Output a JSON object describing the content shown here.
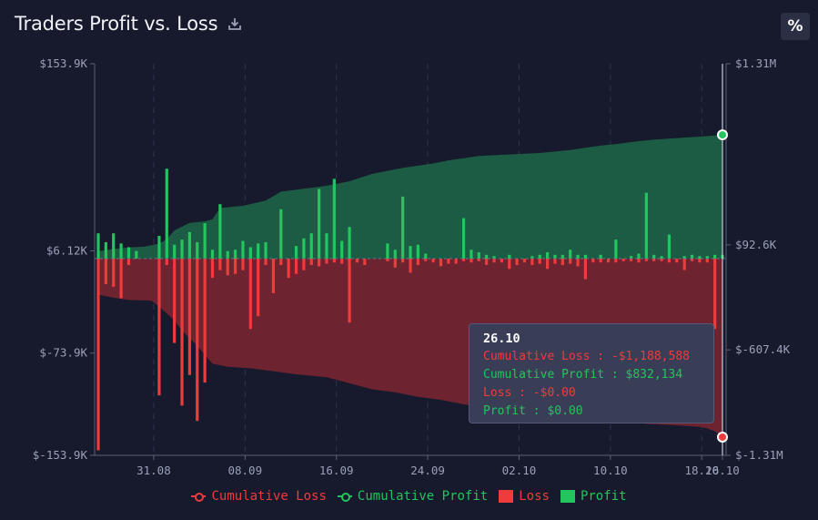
{
  "header": {
    "title": "Traders Profit vs. Loss",
    "download_icon": "download-icon",
    "percent_button_label": "%"
  },
  "colors": {
    "background": "#161a2c",
    "loss": "#ef3b3b",
    "profit": "#22c55e",
    "loss_area": "#6e2330",
    "profit_area": "#1d5c44"
  },
  "tooltip": {
    "date": "26.10",
    "cumulative_loss": "Cumulative Loss : -$1,188,588",
    "cumulative_profit": "Cumulative Profit : $832,134",
    "loss": "Loss : -$0.00",
    "profit": "Profit : $0.00"
  },
  "chart_data": {
    "type": "bar",
    "title": "Traders Profit vs. Loss",
    "x_tick_labels": [
      "31.08",
      "08.09",
      "16.09",
      "24.09",
      "02.10",
      "10.10",
      "18.10",
      "26.10"
    ],
    "left_axis": {
      "tick_labels": [
        "$153.9K",
        "$6.12K",
        "$-73.9K",
        "$-153.9K"
      ],
      "ticks": [
        153900,
        6120,
        -73900,
        -153900
      ],
      "range": [
        -153900,
        153900
      ],
      "zero": 0
    },
    "right_axis": {
      "tick_labels": [
        "$1.31M",
        "$92.6K",
        "$-607.4K",
        "$-1.31M"
      ],
      "ticks": [
        1310000,
        92600,
        -607400,
        -1310000
      ],
      "range": [
        -1310000,
        1310000
      ]
    },
    "legend": [
      {
        "name": "Cumulative Loss",
        "kind": "line",
        "color": "#ef3b3b"
      },
      {
        "name": "Cumulative Profit",
        "kind": "line",
        "color": "#22c55e"
      },
      {
        "name": "Loss",
        "kind": "box",
        "color": "#ef3b3b"
      },
      {
        "name": "Profit",
        "kind": "box",
        "color": "#22c55e"
      }
    ],
    "bars": {
      "unit": "USD",
      "profit": [
        {
          "i": 0,
          "v": 20000
        },
        {
          "i": 1,
          "v": 13000
        },
        {
          "i": 2,
          "v": 20000
        },
        {
          "i": 3,
          "v": 12000
        },
        {
          "i": 4,
          "v": 9000
        },
        {
          "i": 5,
          "v": 6000
        },
        {
          "i": 8,
          "v": 18000
        },
        {
          "i": 9,
          "v": 71000
        },
        {
          "i": 10,
          "v": 11000
        },
        {
          "i": 11,
          "v": 15000
        },
        {
          "i": 12,
          "v": 21000
        },
        {
          "i": 13,
          "v": 13000
        },
        {
          "i": 14,
          "v": 28000
        },
        {
          "i": 15,
          "v": 7000
        },
        {
          "i": 16,
          "v": 43000
        },
        {
          "i": 17,
          "v": 6000
        },
        {
          "i": 18,
          "v": 7000
        },
        {
          "i": 19,
          "v": 14000
        },
        {
          "i": 20,
          "v": 9000
        },
        {
          "i": 21,
          "v": 12000
        },
        {
          "i": 22,
          "v": 13000
        },
        {
          "i": 24,
          "v": 39000
        },
        {
          "i": 26,
          "v": 10000
        },
        {
          "i": 27,
          "v": 16000
        },
        {
          "i": 28,
          "v": 20000
        },
        {
          "i": 29,
          "v": 55000
        },
        {
          "i": 30,
          "v": 20000
        },
        {
          "i": 31,
          "v": 63000
        },
        {
          "i": 32,
          "v": 14000
        },
        {
          "i": 33,
          "v": 25000
        },
        {
          "i": 38,
          "v": 12000
        },
        {
          "i": 39,
          "v": 7000
        },
        {
          "i": 40,
          "v": 49000
        },
        {
          "i": 41,
          "v": 10000
        },
        {
          "i": 42,
          "v": 11000
        },
        {
          "i": 43,
          "v": 4000
        },
        {
          "i": 48,
          "v": 32000
        },
        {
          "i": 49,
          "v": 7000
        },
        {
          "i": 50,
          "v": 5000
        },
        {
          "i": 51,
          "v": 3000
        },
        {
          "i": 52,
          "v": 2000
        },
        {
          "i": 54,
          "v": 3000
        },
        {
          "i": 57,
          "v": 2000
        },
        {
          "i": 58,
          "v": 3000
        },
        {
          "i": 59,
          "v": 5000
        },
        {
          "i": 60,
          "v": 3000
        },
        {
          "i": 61,
          "v": 3000
        },
        {
          "i": 62,
          "v": 7000
        },
        {
          "i": 63,
          "v": 3000
        },
        {
          "i": 64,
          "v": 3000
        },
        {
          "i": 66,
          "v": 3000
        },
        {
          "i": 68,
          "v": 15000
        },
        {
          "i": 70,
          "v": 2000
        },
        {
          "i": 71,
          "v": 4000
        },
        {
          "i": 72,
          "v": 52000
        },
        {
          "i": 73,
          "v": 3000
        },
        {
          "i": 74,
          "v": 2000
        },
        {
          "i": 75,
          "v": 19000
        },
        {
          "i": 77,
          "v": 2000
        },
        {
          "i": 78,
          "v": 3000
        },
        {
          "i": 79,
          "v": 2000
        },
        {
          "i": 80,
          "v": 2000
        },
        {
          "i": 81,
          "v": 3000
        },
        {
          "i": 82,
          "v": 3000
        }
      ],
      "loss": [
        {
          "i": 0,
          "v": -150000
        },
        {
          "i": 1,
          "v": -20000
        },
        {
          "i": 2,
          "v": -22000
        },
        {
          "i": 3,
          "v": -31000
        },
        {
          "i": 4,
          "v": -5000
        },
        {
          "i": 8,
          "v": -107000
        },
        {
          "i": 9,
          "v": -5000
        },
        {
          "i": 10,
          "v": -66000
        },
        {
          "i": 11,
          "v": -115000
        },
        {
          "i": 12,
          "v": -91000
        },
        {
          "i": 13,
          "v": -127000
        },
        {
          "i": 14,
          "v": -97000
        },
        {
          "i": 15,
          "v": -15000
        },
        {
          "i": 16,
          "v": -9000
        },
        {
          "i": 17,
          "v": -13000
        },
        {
          "i": 18,
          "v": -12000
        },
        {
          "i": 19,
          "v": -9000
        },
        {
          "i": 20,
          "v": -55000
        },
        {
          "i": 21,
          "v": -45000
        },
        {
          "i": 22,
          "v": -5000
        },
        {
          "i": 23,
          "v": -27000
        },
        {
          "i": 24,
          "v": -5000
        },
        {
          "i": 25,
          "v": -15000
        },
        {
          "i": 26,
          "v": -12000
        },
        {
          "i": 27,
          "v": -9000
        },
        {
          "i": 28,
          "v": -5000
        },
        {
          "i": 29,
          "v": -6000
        },
        {
          "i": 30,
          "v": -4000
        },
        {
          "i": 31,
          "v": -3000
        },
        {
          "i": 32,
          "v": -4000
        },
        {
          "i": 33,
          "v": -50000
        },
        {
          "i": 34,
          "v": -3000
        },
        {
          "i": 35,
          "v": -5000
        },
        {
          "i": 38,
          "v": -2000
        },
        {
          "i": 39,
          "v": -7000
        },
        {
          "i": 40,
          "v": -3000
        },
        {
          "i": 41,
          "v": -11000
        },
        {
          "i": 42,
          "v": -5000
        },
        {
          "i": 43,
          "v": -2000
        },
        {
          "i": 44,
          "v": -3000
        },
        {
          "i": 45,
          "v": -6000
        },
        {
          "i": 46,
          "v": -4000
        },
        {
          "i": 47,
          "v": -4000
        },
        {
          "i": 48,
          "v": -2000
        },
        {
          "i": 49,
          "v": -3000
        },
        {
          "i": 50,
          "v": -2000
        },
        {
          "i": 51,
          "v": -5000
        },
        {
          "i": 52,
          "v": -3000
        },
        {
          "i": 53,
          "v": -3000
        },
        {
          "i": 54,
          "v": -8000
        },
        {
          "i": 55,
          "v": -5000
        },
        {
          "i": 56,
          "v": -3000
        },
        {
          "i": 57,
          "v": -5000
        },
        {
          "i": 58,
          "v": -4000
        },
        {
          "i": 59,
          "v": -8000
        },
        {
          "i": 60,
          "v": -4000
        },
        {
          "i": 61,
          "v": -5000
        },
        {
          "i": 62,
          "v": -4000
        },
        {
          "i": 63,
          "v": -6000
        },
        {
          "i": 64,
          "v": -16000
        },
        {
          "i": 65,
          "v": -3000
        },
        {
          "i": 66,
          "v": -3000
        },
        {
          "i": 67,
          "v": -3000
        },
        {
          "i": 68,
          "v": -3000
        },
        {
          "i": 69,
          "v": -2000
        },
        {
          "i": 70,
          "v": -2000
        },
        {
          "i": 71,
          "v": -3000
        },
        {
          "i": 72,
          "v": -2000
        },
        {
          "i": 73,
          "v": -2000
        },
        {
          "i": 74,
          "v": -2000
        },
        {
          "i": 75,
          "v": -3000
        },
        {
          "i": 76,
          "v": -3000
        },
        {
          "i": 77,
          "v": -9000
        },
        {
          "i": 78,
          "v": -2000
        },
        {
          "i": 79,
          "v": -3000
        },
        {
          "i": 80,
          "v": -3000
        },
        {
          "i": 81,
          "v": -55000
        }
      ]
    },
    "cumulative_profit": [
      [
        0,
        50000
      ],
      [
        2,
        65000
      ],
      [
        3,
        70000
      ],
      [
        4,
        75000
      ],
      [
        6,
        80000
      ],
      [
        8,
        100000
      ],
      [
        9,
        130000
      ],
      [
        10,
        190000
      ],
      [
        12,
        240000
      ],
      [
        14,
        250000
      ],
      [
        15,
        265000
      ],
      [
        16,
        340000
      ],
      [
        19,
        355000
      ],
      [
        22,
        390000
      ],
      [
        24,
        450000
      ],
      [
        27,
        470000
      ],
      [
        30,
        490000
      ],
      [
        33,
        520000
      ],
      [
        36,
        570000
      ],
      [
        40,
        610000
      ],
      [
        44,
        640000
      ],
      [
        46,
        660000
      ],
      [
        50,
        690000
      ],
      [
        54,
        700000
      ],
      [
        58,
        710000
      ],
      [
        62,
        730000
      ],
      [
        66,
        760000
      ],
      [
        68,
        770000
      ],
      [
        71,
        790000
      ],
      [
        73,
        800000
      ],
      [
        76,
        810000
      ],
      [
        79,
        820000
      ],
      [
        82,
        832134
      ]
    ],
    "cumulative_loss": [
      [
        0,
        -240000
      ],
      [
        2,
        -260000
      ],
      [
        4,
        -275000
      ],
      [
        7,
        -280000
      ],
      [
        8,
        -320000
      ],
      [
        10,
        -410000
      ],
      [
        11,
        -480000
      ],
      [
        13,
        -580000
      ],
      [
        15,
        -700000
      ],
      [
        17,
        -720000
      ],
      [
        20,
        -730000
      ],
      [
        23,
        -750000
      ],
      [
        26,
        -770000
      ],
      [
        30,
        -790000
      ],
      [
        33,
        -830000
      ],
      [
        36,
        -870000
      ],
      [
        39,
        -890000
      ],
      [
        42,
        -920000
      ],
      [
        45,
        -940000
      ],
      [
        48,
        -970000
      ],
      [
        52,
        -1000000
      ],
      [
        56,
        -1020000
      ],
      [
        60,
        -1040000
      ],
      [
        64,
        -1060000
      ],
      [
        68,
        -1080000
      ],
      [
        72,
        -1100000
      ],
      [
        76,
        -1110000
      ],
      [
        79,
        -1120000
      ],
      [
        80,
        -1130000
      ],
      [
        81,
        -1150000
      ],
      [
        82,
        -1188588
      ]
    ]
  }
}
